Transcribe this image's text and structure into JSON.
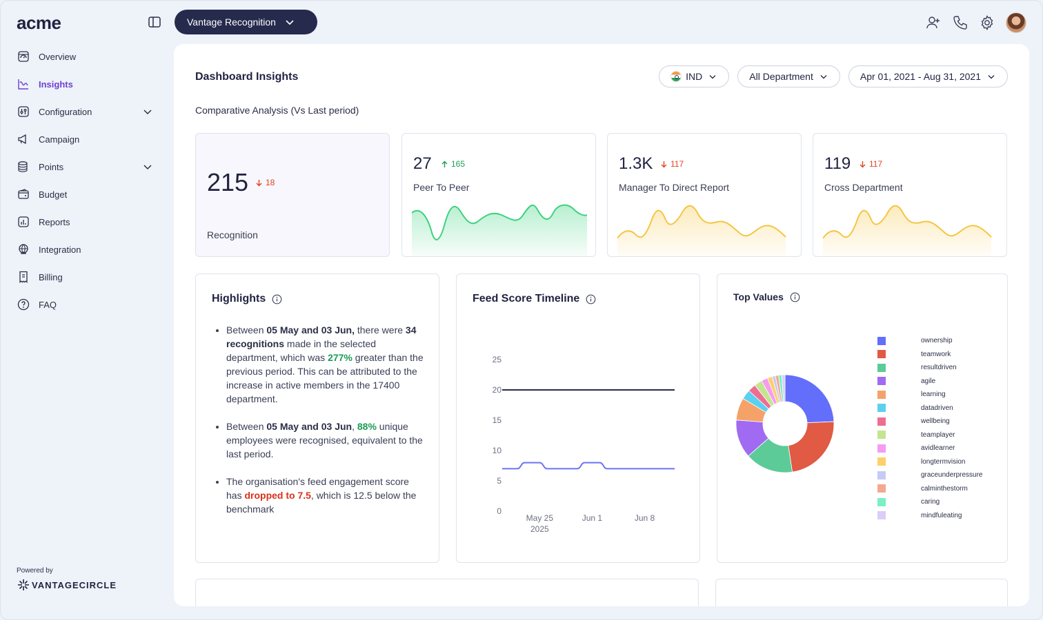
{
  "brand": {
    "logo": "acme",
    "powered_by": "Powered by",
    "vendor": "VANTAGECIRCLE"
  },
  "app_switcher": {
    "label": "Vantage Recognition"
  },
  "sidebar": {
    "items": [
      {
        "label": "Overview",
        "icon": "overview-icon"
      },
      {
        "label": "Insights",
        "icon": "insights-icon",
        "active": true
      },
      {
        "label": "Configuration",
        "icon": "configuration-icon",
        "expandable": true
      },
      {
        "label": "Campaign",
        "icon": "campaign-icon"
      },
      {
        "label": "Points",
        "icon": "points-icon",
        "expandable": true
      },
      {
        "label": "Budget",
        "icon": "budget-icon"
      },
      {
        "label": "Reports",
        "icon": "reports-icon"
      },
      {
        "label": "Integration",
        "icon": "integration-icon"
      },
      {
        "label": "Billing",
        "icon": "billing-icon"
      },
      {
        "label": "FAQ",
        "icon": "faq-icon"
      }
    ]
  },
  "header": {
    "title": "Dashboard Insights",
    "subtitle": "Comparative Analysis (Vs Last period)"
  },
  "filters": {
    "country": "IND",
    "department": "All Department",
    "date_range": "Apr 01, 2021 - Aug 31, 2021"
  },
  "stats": [
    {
      "value": "215",
      "delta": "18",
      "direction": "down",
      "label": "Recognition"
    },
    {
      "value": "27",
      "delta": "165",
      "direction": "up",
      "label": "Peer To Peer",
      "color": "#34d17a"
    },
    {
      "value": "1.3K",
      "delta": "117",
      "direction": "down",
      "label": "Manager To Direct Report",
      "color": "#f5c542"
    },
    {
      "value": "119",
      "delta": "117",
      "direction": "down",
      "label": "Cross Department",
      "color": "#f5c542"
    }
  ],
  "highlights": {
    "title": "Highlights",
    "p1": {
      "a": "Between ",
      "b": "05 May and 03 Jun,",
      "c": " there were ",
      "d": "34 recognitions",
      "e": " made in the selected department, which was ",
      "f": "277%",
      "g": " greater than the previous period. This can be attributed to the increase in active members in the 17400 department."
    },
    "p2": {
      "a": "Between ",
      "b": "05 May and 03 Jun",
      "c": ", ",
      "d": "88%",
      "e": " unique employees were recognised, equivalent to the last period."
    },
    "p3": {
      "a": "The organisation's feed engagement score has ",
      "b": "dropped to 7.5",
      "c": ", which is 12.5 below the benchmark"
    }
  },
  "timeline": {
    "title": "Feed Score Timeline"
  },
  "top_values": {
    "title": "Top Values"
  },
  "chart_data": [
    {
      "type": "line",
      "title": "Feed Score Timeline",
      "ylim": [
        0,
        25
      ],
      "yticks": [
        "0",
        "5",
        "10",
        "15",
        "20",
        "25"
      ],
      "xticks": [
        [
          "May 25",
          "2025"
        ],
        [
          "Jun 1",
          ""
        ],
        [
          "Jun 8",
          ""
        ]
      ],
      "x": [
        "May 20",
        "May 21",
        "May 22",
        "May 23",
        "May 24",
        "May 25",
        "May 26",
        "May 27",
        "May 28",
        "May 29",
        "May 30",
        "May 31",
        "Jun 1",
        "Jun 2",
        "Jun 3",
        "Jun 4",
        "Jun 5",
        "Jun 6",
        "Jun 7",
        "Jun 8",
        "Jun 9",
        "Jun 10",
        "Jun 11",
        "Jun 12"
      ],
      "series": [
        {
          "values": [
            20,
            20,
            20,
            20,
            20,
            20,
            20,
            20,
            20,
            20,
            20,
            20,
            20,
            20,
            20,
            20,
            20,
            20,
            20,
            20,
            20,
            20,
            20,
            20
          ],
          "color": "#262a4d"
        },
        {
          "values": [
            7,
            7,
            7,
            8,
            8,
            8,
            7,
            7,
            7,
            7,
            7,
            8,
            8,
            8,
            7,
            7,
            7,
            7,
            7,
            7,
            7,
            7,
            7,
            7
          ],
          "color": "#6c73f0"
        }
      ]
    },
    {
      "type": "pie",
      "title": "Top Values",
      "labels": [
        "ownership",
        "teamwork",
        "resultdriven",
        "agile",
        "learning",
        "datadriven",
        "wellbeing",
        "teamplayer",
        "avidlearner",
        "longtermvision",
        "graceunderpressure",
        "calminthestorm",
        "caring",
        "mindfuleating"
      ],
      "values": [
        23,
        22,
        15,
        12,
        7,
        3,
        2.5,
        2.5,
        2,
        1.5,
        1,
        1,
        1,
        1
      ],
      "colors": [
        "#636efa",
        "#e05a44",
        "#5ccb98",
        "#a16af3",
        "#f5a269",
        "#5cd1ef",
        "#ee6e92",
        "#c4e58f",
        "#f49cf2",
        "#fdd06b",
        "#c7c9f7",
        "#f3a98f",
        "#7af0c5",
        "#dacdf7"
      ]
    }
  ]
}
